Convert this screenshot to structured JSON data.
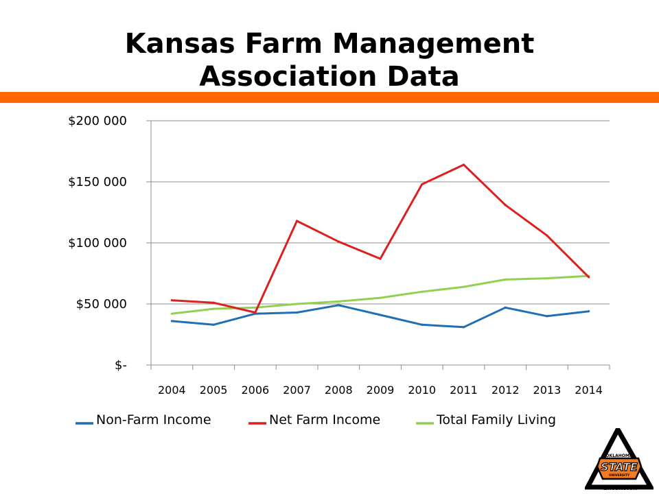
{
  "slide": {
    "title_line1": "Kansas Farm Management",
    "title_line2": "Association Data",
    "accent_color": "#FF6600"
  },
  "logo": {
    "text_top": "OKLAHOMA",
    "text_main": "STATE",
    "text_small": "UNIVERSITY",
    "text_bottom": "Extension"
  },
  "chart_data": {
    "type": "line",
    "categories": [
      "2004",
      "2005",
      "2006",
      "2007",
      "2008",
      "2009",
      "2010",
      "2011",
      "2012",
      "2013",
      "2014"
    ],
    "ylim": [
      0,
      200000
    ],
    "yticks": [
      0,
      50000,
      100000,
      150000,
      200000
    ],
    "ytick_labels": [
      "$-",
      "$50 000",
      "$100 000",
      "$150 000",
      "$200 000"
    ],
    "grid": true,
    "legend_position": "bottom",
    "series": [
      {
        "name": "Non-Farm Income",
        "color": "#1F6FB4",
        "values": [
          36000,
          33000,
          42000,
          43000,
          49000,
          41000,
          33000,
          31000,
          47000,
          40000,
          44000
        ]
      },
      {
        "name": "Net Farm Income",
        "color": "#DD1F1F",
        "values": [
          53000,
          51000,
          43000,
          118000,
          101000,
          87000,
          148000,
          164000,
          131000,
          106000,
          72000
        ]
      },
      {
        "name": "Total Family Living",
        "color": "#92D050",
        "values": [
          42000,
          46000,
          47000,
          50000,
          52000,
          55000,
          60000,
          64000,
          70000,
          71000,
          73000
        ]
      }
    ]
  }
}
